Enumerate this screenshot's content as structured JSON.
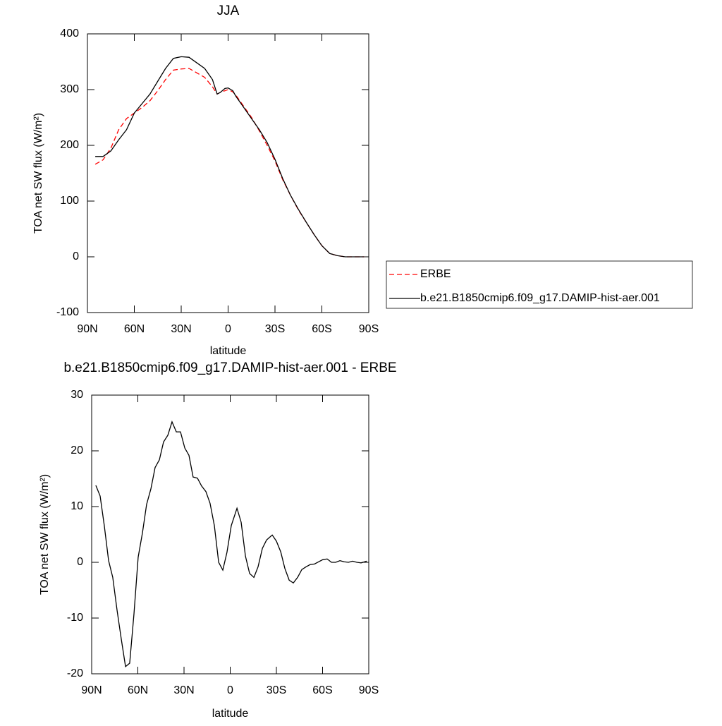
{
  "chart_data": [
    {
      "type": "line",
      "title": "JJA",
      "xlabel": "latitude",
      "ylabel": "TOA net SW flux (W/m²)",
      "x": [
        85,
        80,
        75,
        70,
        65,
        60,
        55,
        50,
        45,
        40,
        35,
        30,
        25,
        20,
        15,
        10,
        7,
        5,
        2,
        0,
        -3,
        -5,
        -10,
        -15,
        -20,
        -25,
        -30,
        -35,
        -40,
        -45,
        -50,
        -55,
        -60,
        -65,
        -70,
        -75,
        -80,
        -85,
        -87
      ],
      "series": [
        {
          "name": "ERBE",
          "color": "#ff0000",
          "style": "dashed",
          "values": [
            166,
            174,
            195,
            228,
            248,
            258,
            268,
            280,
            298,
            318,
            335,
            337,
            338,
            330,
            322,
            305,
            292,
            295,
            298,
            300,
            296,
            290,
            270,
            250,
            226,
            200,
            172,
            138,
            110,
            84,
            62,
            40,
            20,
            6,
            2,
            0,
            0,
            0,
            0
          ]
        },
        {
          "name": "b.e21.B1850cmip6.f09_g17.DAMIP-hist-aer.001",
          "color": "#000000",
          "style": "solid",
          "values": [
            180,
            180,
            190,
            210,
            228,
            258,
            275,
            292,
            315,
            338,
            356,
            359,
            358,
            348,
            338,
            318,
            292,
            295,
            302,
            303,
            298,
            288,
            268,
            248,
            228,
            205,
            175,
            140,
            110,
            85,
            62,
            40,
            20,
            6,
            2,
            0,
            0,
            0,
            0
          ]
        }
      ],
      "xlim": [
        90,
        -90
      ],
      "xticks": [
        {
          "value": 90,
          "label": "90N"
        },
        {
          "value": 60,
          "label": "60N"
        },
        {
          "value": 30,
          "label": "30N"
        },
        0,
        {
          "value": -30,
          "label": "30S"
        },
        {
          "value": -60,
          "label": "60S"
        },
        {
          "value": -90,
          "label": "90S"
        }
      ],
      "ylim": [
        -100,
        400
      ],
      "yticks": [
        -100,
        0,
        100,
        200,
        300,
        400
      ],
      "legend": "outside-right"
    },
    {
      "type": "line",
      "title": "b.e21.B1850cmip6.f09_g17.DAMIP-hist-aer.001 - ERBE",
      "xlabel": "latitude",
      "ylabel": "TOA net SW flux (W/m²)",
      "x": [
        87.3,
        84.5,
        81.8,
        79,
        76.3,
        73.5,
        70.8,
        68,
        65.3,
        62.5,
        59.8,
        57,
        54.3,
        51.5,
        48.8,
        46,
        43.3,
        40.5,
        37.8,
        35,
        32.3,
        29.5,
        26.8,
        24.1,
        21.3,
        18.6,
        15.8,
        13.1,
        10.3,
        7.5,
        4.8,
        2.1,
        -0.7,
        -4.4,
        -7.1,
        -9.9,
        -12.6,
        -15.4,
        -18.1,
        -20.9,
        -23.6,
        -27.3,
        -30,
        -32.8,
        -35.5,
        -38.3,
        -41,
        -43.8,
        -46.5,
        -49.3,
        -52,
        -54.8,
        -57.5,
        -60.3,
        -63,
        -65.8,
        -68.5,
        -71.3,
        -74,
        -76.8,
        -79.5,
        -82.3,
        -85,
        -88.7
      ],
      "series": [
        {
          "color": "#000000",
          "style": "solid",
          "values": [
            13.8,
            11.9,
            6.6,
            0.3,
            -2.7,
            -8.6,
            -13.7,
            -18.7,
            -18.1,
            -9.2,
            0.9,
            5.3,
            10.4,
            13.2,
            17,
            18.4,
            21.6,
            22.8,
            25.2,
            23.4,
            23.4,
            20.5,
            19.2,
            15.3,
            15.1,
            13.7,
            12.7,
            10.6,
            6.6,
            0,
            -1.4,
            1.8,
            6.6,
            9.7,
            7.2,
            1.1,
            -2,
            -2.7,
            -0.8,
            2.5,
            4,
            4.9,
            3.8,
            1.9,
            -1.1,
            -3.2,
            -3.7,
            -2.7,
            -1.3,
            -0.8,
            -0.4,
            -0.3,
            0.1,
            0.5,
            0.6,
            0,
            0,
            0.3,
            0.1,
            0,
            0.2,
            0,
            -0.1,
            0.2
          ]
        }
      ],
      "xlim": [
        90,
        -90
      ],
      "xticks": [
        {
          "value": 90,
          "label": "90N"
        },
        {
          "value": 60,
          "label": "60N"
        },
        {
          "value": 30,
          "label": "30N"
        },
        0,
        {
          "value": -30,
          "label": "30S"
        },
        {
          "value": -60,
          "label": "60S"
        },
        {
          "value": -90,
          "label": "90S"
        }
      ],
      "ylim": [
        -20,
        30
      ],
      "yticks": [
        -20,
        -10,
        0,
        10,
        20,
        30
      ]
    }
  ]
}
